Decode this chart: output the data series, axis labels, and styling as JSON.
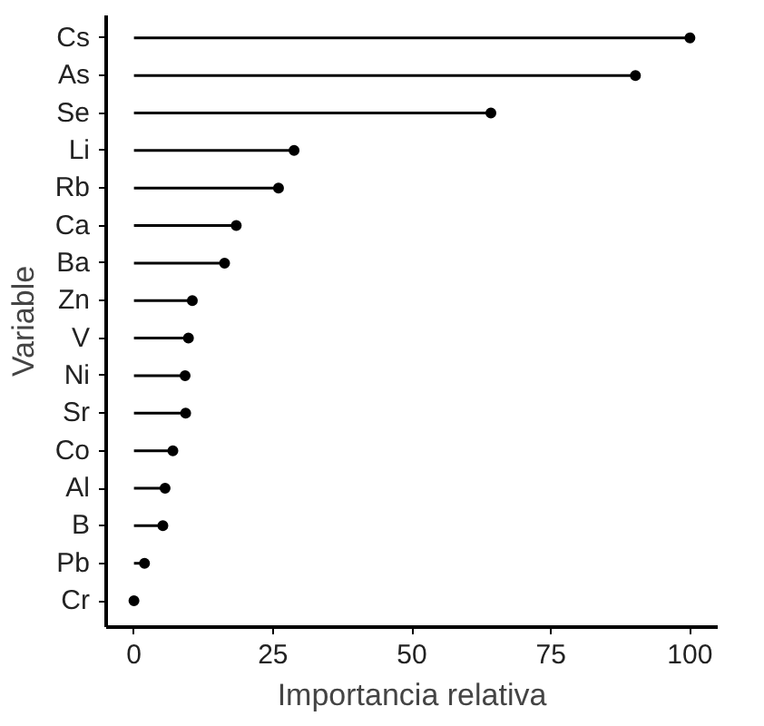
{
  "chart_data": {
    "type": "lollipop",
    "orientation": "horizontal",
    "xlabel": "Importancia relativa",
    "ylabel": "Variable",
    "categories": [
      "Cs",
      "As",
      "Se",
      "Li",
      "Rb",
      "Ca",
      "Ba",
      "Zn",
      "V",
      "Ni",
      "Sr",
      "Co",
      "Al",
      "B",
      "Pb",
      "Cr"
    ],
    "values": [
      100,
      90.2,
      64.2,
      28.8,
      26.0,
      18.4,
      16.3,
      10.5,
      9.8,
      9.2,
      9.3,
      7.0,
      5.6,
      5.2,
      1.9,
      0
    ],
    "color": "#000000",
    "marker": "circle",
    "xlim": [
      -5,
      105
    ],
    "xticks": [
      0,
      25,
      50,
      75,
      100
    ],
    "grid": false
  }
}
